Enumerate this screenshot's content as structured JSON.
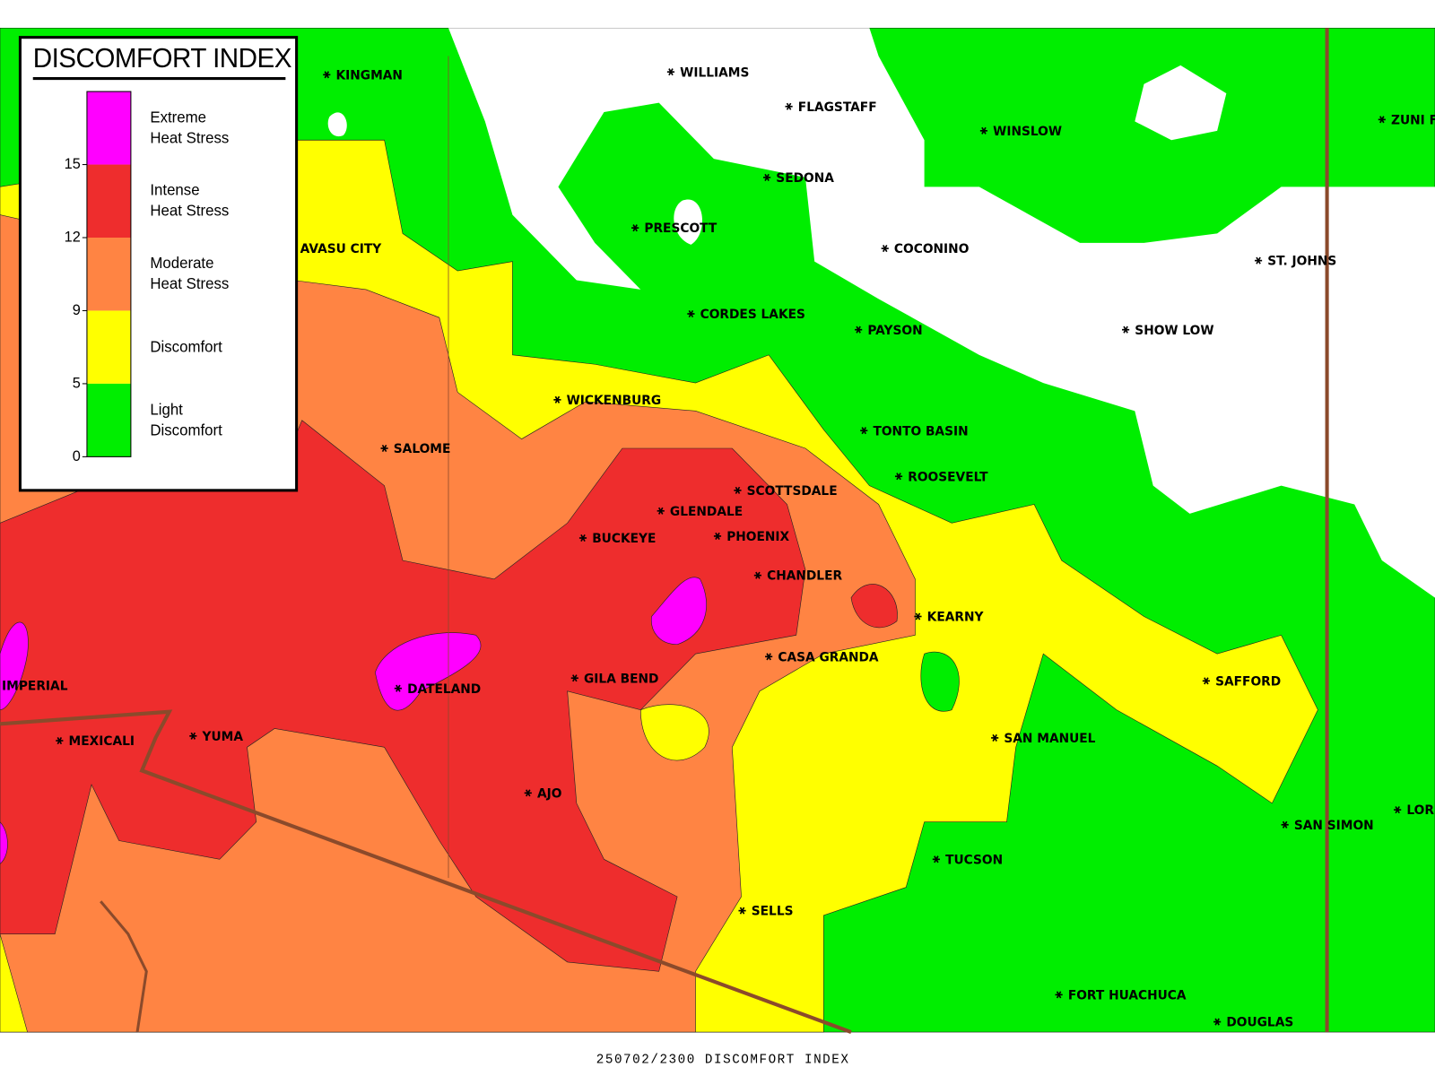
{
  "map": {
    "title": "DISCOMFORT INDEX",
    "footer": "250702/2300 DISCOMFORT INDEX",
    "legend": {
      "items": [
        {
          "label": "Extreme Heat Stress",
          "color": "#ff00ff"
        },
        {
          "label": "Intense Heat Stress",
          "color": "#ee2d2d"
        },
        {
          "label": "Moderate Heat Stress",
          "color": "#ff8443"
        },
        {
          "label": "Discomfort",
          "color": "#ffff00"
        },
        {
          "label": "Light Discomfort",
          "color": "#00ee00"
        }
      ],
      "ticks": [
        15,
        12,
        9,
        5,
        0
      ]
    },
    "cities": [
      "KINGMAN",
      "WILLIAMS",
      "FLAGSTAFF",
      "WINSLOW",
      "ZUNI F",
      "SEDONA",
      "PRESCOTT",
      "COCONINO",
      "ST. JOHNS",
      "AVASU CITY",
      "CORDES LAKES",
      "PAYSON",
      "SHOW LOW",
      "WICKENBURG",
      "TONTO BASIN",
      "SALOME",
      "ROOSEVELT",
      "SCOTTSDALE",
      "GLENDALE",
      "BUCKEYE",
      "PHOENIX",
      "CHANDLER",
      "KEARNY",
      "CASA GRANDA",
      "SAFFORD",
      "GILA BEND",
      "DATELAND",
      "IMPERIAL",
      "MEXICALI",
      "YUMA",
      "SAN MANUEL",
      "AJO",
      "SAN SIMON",
      "LOR",
      "TUCSON",
      "SELLS",
      "FORT HUACHUCA",
      "DOUGLAS"
    ]
  }
}
